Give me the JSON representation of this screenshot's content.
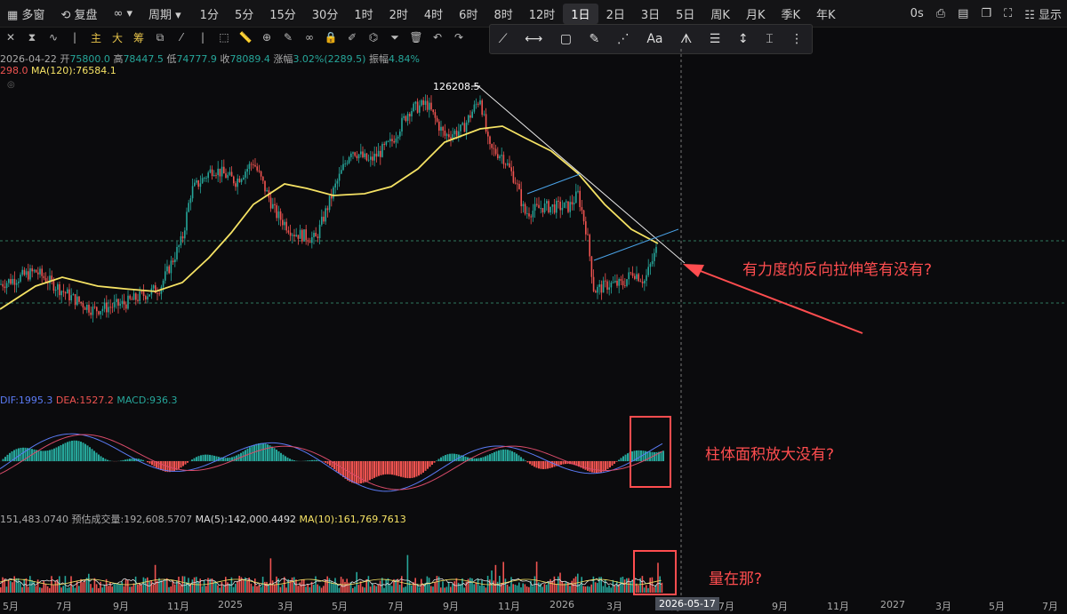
{
  "topbar": {
    "multi_window": "多窗",
    "adjust": "复盘",
    "period_label": "周期",
    "periods": [
      "1分",
      "5分",
      "15分",
      "30分",
      "1时",
      "2时",
      "4时",
      "6时",
      "8时",
      "12时",
      "1日",
      "2日",
      "3日",
      "5日",
      "周K",
      "月K",
      "季K",
      "年K"
    ],
    "active_period": "1日",
    "right_time": "0s",
    "right_display": "显示"
  },
  "toolbar": {
    "zhu": "主",
    "da": "大",
    "chou": "筹",
    "text_tool": "Aa"
  },
  "info": {
    "date": "2026-04-22",
    "open_label": "开",
    "open": "75800.0",
    "high_label": "高",
    "high": "78447.5",
    "low_label": "低",
    "low": "74777.9",
    "close_label": "收",
    "close": "78089.4",
    "change_label": "涨幅",
    "change": "3.02%(2289.5)",
    "amp_label": "振幅",
    "amp": "4.84%",
    "ma_prev": "298.0",
    "ma120": "MA(120):76584.1"
  },
  "macd": {
    "dif": "DIF:1995.3",
    "dea": "DEA:1527.2",
    "macd": "MACD:936.3"
  },
  "volume": {
    "vol": "151,483.0740",
    "est": "预估成交量:192,608.5707",
    "ma5": "MA(5):142,000.4492",
    "ma10": "MA(10):161,769.7613"
  },
  "price_peak_label": "126208.5",
  "annotations": {
    "a1": "有力度的反向拉伸笔有没有?",
    "a2": "柱体面积放大没有?",
    "a3": "量在那?"
  },
  "xaxis": {
    "labels": [
      "5月",
      "7月",
      "9月",
      "11月",
      "2025",
      "3月",
      "5月",
      "7月",
      "9月",
      "11月",
      "2026",
      "3月",
      "5月",
      "7月",
      "9月",
      "11月",
      "2027",
      "3月",
      "5月",
      "7月"
    ],
    "cursor_date": "2026-05-17"
  },
  "colors": {
    "up": "#26a69a",
    "down": "#ef5350",
    "ma": "#f5e264",
    "annot": "#ff4d4f"
  },
  "chart_data": {
    "type": "candlestick",
    "x": [
      "2024-05",
      "2024-07",
      "2024-09",
      "2024-11",
      "2025-01",
      "2025-03",
      "2025-05",
      "2025-07",
      "2025-09",
      "2025-11",
      "2026-01",
      "2026-03",
      "2026-04-22"
    ],
    "close": [
      64000,
      60000,
      58000,
      88000,
      97000,
      84000,
      104000,
      118000,
      112000,
      92000,
      89000,
      68000,
      78089.4
    ],
    "ma120": [
      68000,
      63000,
      60000,
      62000,
      78000,
      86000,
      90000,
      100000,
      108000,
      110000,
      100000,
      84000,
      76584.1
    ],
    "peak": 126208.5
  }
}
